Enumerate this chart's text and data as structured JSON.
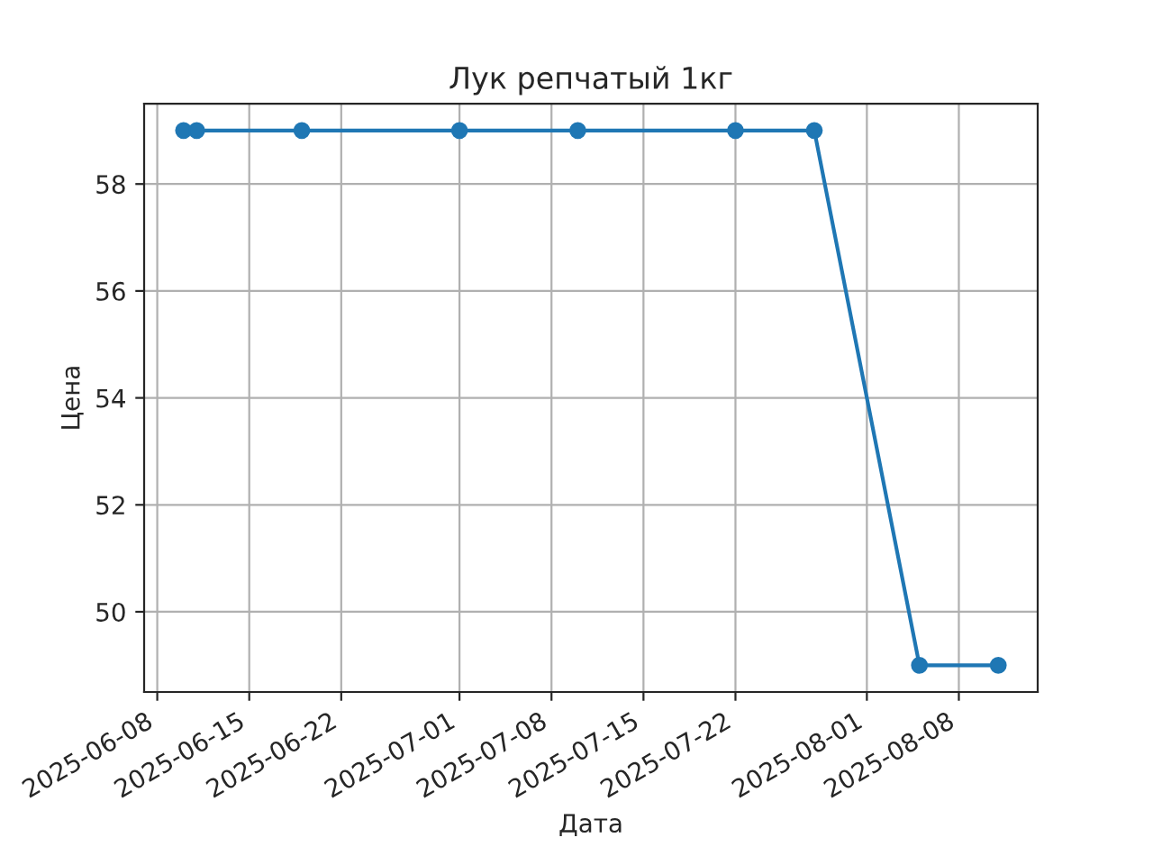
{
  "chart_data": {
    "type": "line",
    "title": "Лук репчатый 1кг",
    "xlabel": "Дата",
    "ylabel": "Цена",
    "x": [
      "2025-06-10",
      "2025-06-11",
      "2025-06-19",
      "2025-07-01",
      "2025-07-10",
      "2025-07-22",
      "2025-07-28",
      "2025-08-05",
      "2025-08-11"
    ],
    "series": [
      {
        "color": "#1f77b4",
        "values": [
          59,
          59,
          59,
          59,
          59,
          59,
          59,
          49,
          49
        ]
      }
    ],
    "xlim": [
      "2025-06-07",
      "2025-08-14"
    ],
    "xticks": [
      "2025-06-08",
      "2025-06-15",
      "2025-06-22",
      "2025-07-01",
      "2025-07-08",
      "2025-07-15",
      "2025-07-22",
      "2025-08-01",
      "2025-08-08"
    ],
    "ylim": [
      48.5,
      59.5
    ],
    "yticks": [
      50,
      52,
      54,
      56,
      58
    ],
    "grid": true,
    "marker": "circle",
    "line_style": "solid"
  }
}
